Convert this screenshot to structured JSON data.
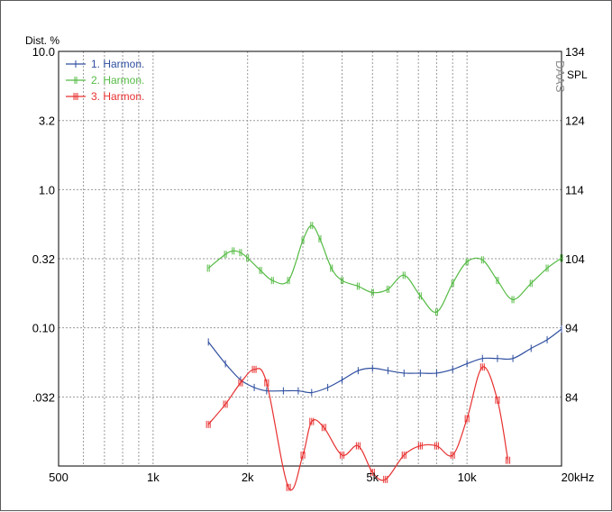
{
  "chart_data": {
    "type": "line",
    "x_scale": "log",
    "xlim": [
      500,
      20000
    ],
    "x_ticks": [
      "500",
      "1k",
      "2k",
      "5k",
      "10k",
      "20kHz"
    ],
    "y_left_ticks": [
      "10.0",
      "3.2",
      "1.0",
      "0.32",
      "0.10",
      ".032"
    ],
    "y_left_unit": "Dist. %",
    "y_right_ticks": [
      "134",
      "124",
      "114",
      "104",
      "94",
      "84"
    ],
    "y_right_unit": "SPL",
    "watermark": "DAAS",
    "legend_position": "top-left",
    "grid": true,
    "series": [
      {
        "name": "1. Harmon.",
        "color": "#2f4fa0",
        "x": [
          1500,
          1700,
          1900,
          2100,
          2300,
          2600,
          2900,
          3200,
          3600,
          4000,
          4500,
          5000,
          5600,
          6300,
          7100,
          8000,
          9000,
          10000,
          11200,
          12500,
          14000,
          16000,
          18000,
          20000
        ],
        "y": [
          0.079,
          0.055,
          0.042,
          0.037,
          0.035,
          0.035,
          0.035,
          0.034,
          0.037,
          0.042,
          0.049,
          0.051,
          0.049,
          0.047,
          0.047,
          0.047,
          0.05,
          0.055,
          0.06,
          0.06,
          0.06,
          0.071,
          0.082,
          0.098
        ]
      },
      {
        "name": "2. Harmon.",
        "color": "#55bb44",
        "x": [
          1500,
          1700,
          1800,
          1900,
          2000,
          2200,
          2400,
          2700,
          3000,
          3200,
          3400,
          3700,
          4000,
          4500,
          5000,
          5600,
          6300,
          7100,
          8000,
          9000,
          10000,
          11200,
          12500,
          14000,
          16000,
          18000,
          20000
        ],
        "y": [
          0.27,
          0.34,
          0.36,
          0.35,
          0.32,
          0.26,
          0.22,
          0.22,
          0.43,
          0.55,
          0.44,
          0.27,
          0.22,
          0.2,
          0.18,
          0.19,
          0.24,
          0.17,
          0.13,
          0.21,
          0.3,
          0.31,
          0.22,
          0.16,
          0.21,
          0.27,
          0.32
        ]
      },
      {
        "name": "3. Harmon.",
        "color": "#e83030",
        "x": [
          1500,
          1700,
          1900,
          2100,
          2300,
          2700,
          3000,
          3200,
          3500,
          4000,
          4500,
          5000,
          5500,
          6300,
          7100,
          8000,
          9000,
          10000,
          11200,
          12500,
          13500
        ],
        "y": [
          0.02,
          0.028,
          0.04,
          0.05,
          0.04,
          0.007,
          0.012,
          0.021,
          0.019,
          0.012,
          0.014,
          0.009,
          0.008,
          0.012,
          0.014,
          0.014,
          0.012,
          0.022,
          0.052,
          0.03,
          0.011
        ]
      }
    ]
  }
}
